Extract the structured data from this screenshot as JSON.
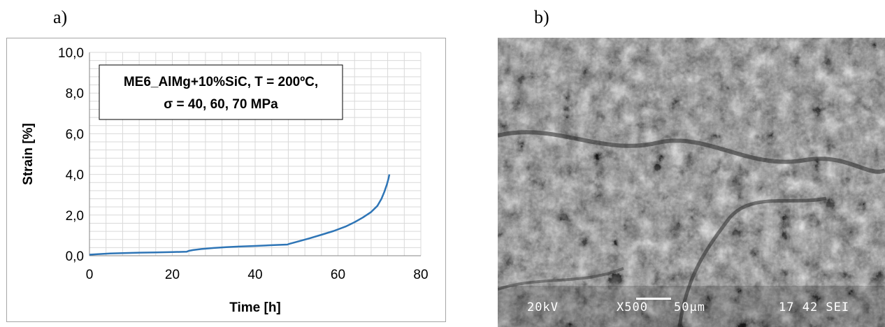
{
  "panels": {
    "a_label": "a)",
    "b_label": "b)"
  },
  "chart_data": {
    "type": "line",
    "title": "ME6_AlMg+10%SiC, T = 200ºC,",
    "subtitle": "σ = 40, 60, 70 MPa",
    "xlabel": "Time [h]",
    "ylabel": "Strain [%]",
    "xlim": [
      0,
      80
    ],
    "ylim": [
      0,
      10
    ],
    "x_ticks": [
      0,
      20,
      40,
      60,
      80
    ],
    "x_tick_labels": [
      "0",
      "20",
      "40",
      "60",
      "80"
    ],
    "y_ticks": [
      0,
      2,
      4,
      6,
      8,
      10
    ],
    "y_tick_labels": [
      "0,0",
      "2,0",
      "4,0",
      "6,0",
      "8,0",
      "10,0"
    ],
    "grid": true,
    "legend": "none",
    "series_color": "#2e75b6",
    "series": [
      {
        "x": [
          0,
          2,
          5,
          8,
          12,
          16,
          20,
          23.5,
          24,
          25,
          27,
          30,
          33,
          36,
          40,
          44,
          47.8,
          48.2,
          50,
          53,
          56,
          59,
          62,
          64,
          66,
          68,
          69.5,
          70.5,
          71.2,
          71.8,
          72.2,
          72.4
        ],
        "y": [
          0.05,
          0.08,
          0.11,
          0.13,
          0.15,
          0.16,
          0.18,
          0.2,
          0.24,
          0.28,
          0.33,
          0.38,
          0.42,
          0.45,
          0.48,
          0.52,
          0.55,
          0.58,
          0.68,
          0.85,
          1.03,
          1.22,
          1.45,
          1.65,
          1.88,
          2.15,
          2.45,
          2.8,
          3.15,
          3.5,
          3.8,
          4.0
        ]
      }
    ]
  },
  "sem": {
    "kv": "20kV",
    "mag": "X500",
    "scale": "50µm",
    "info": "17 42 SEI"
  }
}
